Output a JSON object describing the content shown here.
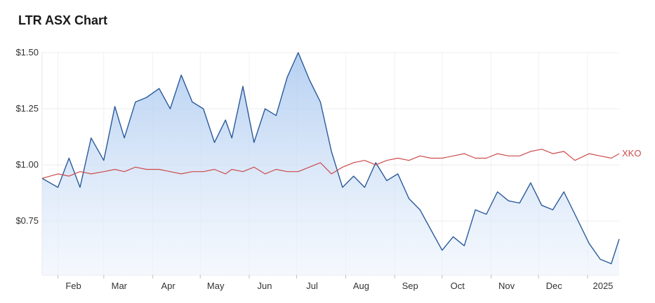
{
  "chart_data": {
    "type": "line",
    "title": "LTR ASX Chart",
    "xlabel": "",
    "ylabel": "",
    "ylim": [
      0.51,
      1.5
    ],
    "x_ticks": [
      "Feb",
      "Mar",
      "Apr",
      "May",
      "Jun",
      "Jul",
      "Aug",
      "Sep",
      "Oct",
      "Nov",
      "Dec",
      "2025"
    ],
    "y_ticks": [
      {
        "value": 1.5,
        "label": "$1.50"
      },
      {
        "value": 1.25,
        "label": "$1.25"
      },
      {
        "value": 1.0,
        "label": "$1.00"
      },
      {
        "value": 0.75,
        "label": "$0.75"
      }
    ],
    "grid": true,
    "x_dates": [
      "2024-01-22",
      "2024-02-01",
      "2024-02-08",
      "2024-02-15",
      "2024-02-22",
      "2024-03-01",
      "2024-03-08",
      "2024-03-14",
      "2024-03-21",
      "2024-03-28",
      "2024-04-05",
      "2024-04-12",
      "2024-04-19",
      "2024-04-26",
      "2024-05-03",
      "2024-05-10",
      "2024-05-17",
      "2024-05-21",
      "2024-05-28",
      "2024-06-04",
      "2024-06-11",
      "2024-06-18",
      "2024-06-25",
      "2024-07-02",
      "2024-07-09",
      "2024-07-16",
      "2024-07-23",
      "2024-07-30",
      "2024-08-06",
      "2024-08-13",
      "2024-08-20",
      "2024-08-27",
      "2024-09-03",
      "2024-09-10",
      "2024-09-17",
      "2024-09-24",
      "2024-10-01",
      "2024-10-08",
      "2024-10-15",
      "2024-10-22",
      "2024-10-29",
      "2024-11-05",
      "2024-11-12",
      "2024-11-19",
      "2024-11-26",
      "2024-12-03",
      "2024-12-10",
      "2024-12-17",
      "2024-12-24",
      "2025-01-02",
      "2025-01-09",
      "2025-01-16",
      "2025-01-21"
    ],
    "series": [
      {
        "name": "",
        "color": "#2a5a9a",
        "fill": true,
        "values": [
          0.94,
          0.9,
          1.03,
          0.9,
          1.12,
          1.02,
          1.26,
          1.12,
          1.28,
          1.3,
          1.34,
          1.25,
          1.4,
          1.28,
          1.25,
          1.1,
          1.2,
          1.12,
          1.35,
          1.1,
          1.25,
          1.22,
          1.39,
          1.5,
          1.38,
          1.28,
          1.06,
          0.9,
          0.95,
          0.9,
          1.01,
          0.93,
          0.96,
          0.85,
          0.8,
          0.71,
          0.62,
          0.68,
          0.64,
          0.8,
          0.78,
          0.88,
          0.84,
          0.83,
          0.92,
          0.82,
          0.8,
          0.88,
          0.78,
          0.65,
          0.58,
          0.56,
          0.67
        ]
      },
      {
        "name": "XKO",
        "color": "#cc4b4b",
        "fill": false,
        "values": [
          0.94,
          0.96,
          0.95,
          0.97,
          0.96,
          0.97,
          0.98,
          0.97,
          0.99,
          0.98,
          0.98,
          0.97,
          0.96,
          0.97,
          0.97,
          0.98,
          0.96,
          0.98,
          0.97,
          0.99,
          0.96,
          0.98,
          0.97,
          0.97,
          0.99,
          1.01,
          0.96,
          0.99,
          1.01,
          1.02,
          1.0,
          1.02,
          1.03,
          1.02,
          1.04,
          1.03,
          1.03,
          1.04,
          1.05,
          1.03,
          1.03,
          1.05,
          1.04,
          1.04,
          1.06,
          1.07,
          1.05,
          1.06,
          1.02,
          1.05,
          1.04,
          1.03,
          1.05
        ]
      }
    ],
    "series_end_label": "XKO"
  }
}
